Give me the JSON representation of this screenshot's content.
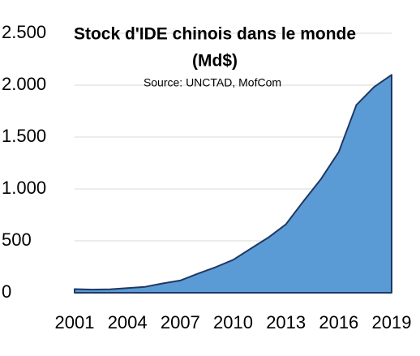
{
  "chart_data": {
    "type": "area",
    "title": [
      "Stock d'IDE chinois dans le monde",
      "(Md$)"
    ],
    "subtitle": "Source: UNCTAD, MofCom",
    "x": [
      2001,
      2002,
      2003,
      2004,
      2005,
      2006,
      2007,
      2008,
      2009,
      2010,
      2011,
      2012,
      2013,
      2014,
      2015,
      2016,
      2017,
      2018,
      2019
    ],
    "values": [
      35,
      30,
      33,
      45,
      57,
      90,
      118,
      184,
      246,
      317,
      425,
      532,
      660,
      883,
      1098,
      1357,
      1809,
      1982,
      2099
    ],
    "color": "#5b9bd5",
    "line_color": "#1f3864",
    "xlim": [
      2001,
      2019
    ],
    "xticks": [
      2001,
      2004,
      2007,
      2010,
      2013,
      2016,
      2019
    ],
    "ylim": [
      0,
      2500
    ],
    "yticks": [
      0,
      500,
      {
        "value": 1000,
        "label": "1.000"
      },
      {
        "value": 1500,
        "label": "1.500"
      },
      {
        "value": 2000,
        "label": "2.000"
      },
      {
        "value": 2500,
        "label": "2.500"
      }
    ],
    "grid": true
  }
}
